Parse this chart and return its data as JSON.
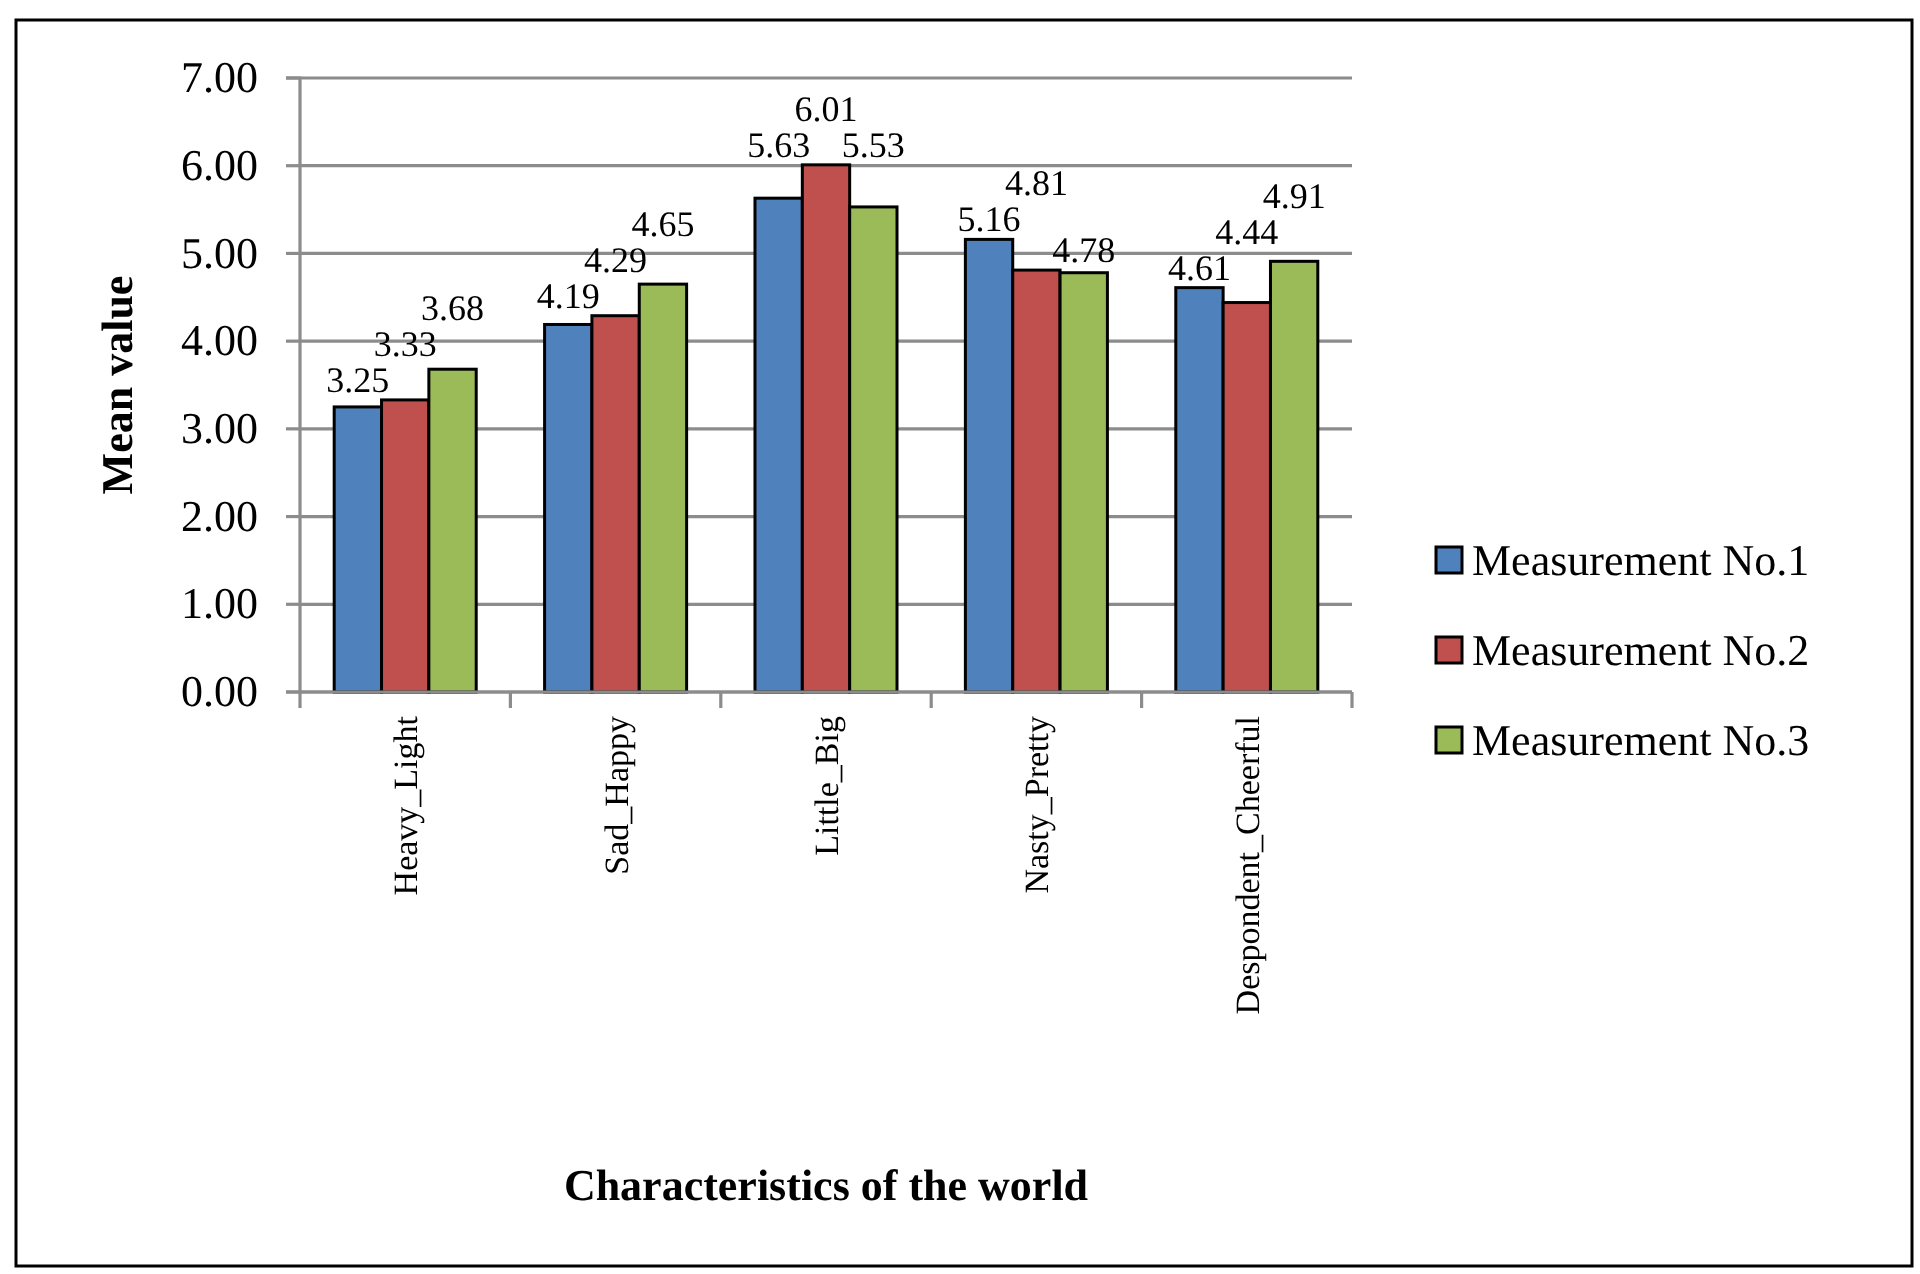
{
  "chart_data": {
    "type": "bar",
    "xlabel": "Characteristics of the world",
    "ylabel": "Mean value",
    "categories": [
      "Heavy_Light",
      "Sad_Happy",
      "Little_Big",
      "Nasty_Pretty",
      "Despondent_Cheerful"
    ],
    "series": [
      {
        "name": "Measurement No.1",
        "color": "#4f81bd",
        "values": [
          3.25,
          4.19,
          5.63,
          5.16,
          4.61
        ]
      },
      {
        "name": "Measurement No.2",
        "color": "#c0504d",
        "values": [
          3.33,
          4.29,
          6.01,
          4.81,
          4.44
        ]
      },
      {
        "name": "Measurement No.3",
        "color": "#9bbb59",
        "values": [
          3.68,
          4.65,
          5.53,
          4.78,
          4.91
        ]
      }
    ],
    "ylim": [
      0,
      7
    ],
    "yticks": [
      {
        "value": 0,
        "label": "0.00"
      },
      {
        "value": 1,
        "label": "1.00"
      },
      {
        "value": 2,
        "label": "2.00"
      },
      {
        "value": 3,
        "label": "3.00"
      },
      {
        "value": 4,
        "label": "4.00"
      },
      {
        "value": 5,
        "label": "5.00"
      },
      {
        "value": 6,
        "label": "6.00"
      },
      {
        "value": 7,
        "label": "7.00"
      }
    ],
    "grid": "y",
    "legend": "right",
    "data_labels": true
  }
}
